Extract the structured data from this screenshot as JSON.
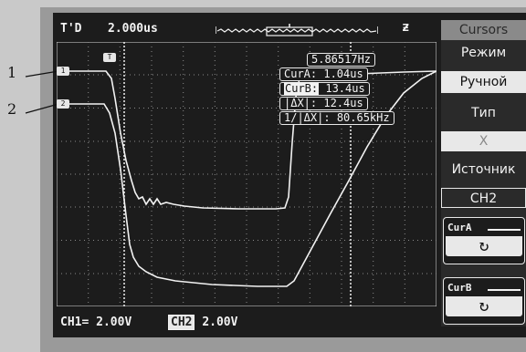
{
  "annotations": {
    "label_1": "1",
    "label_2": "2"
  },
  "topbar": {
    "mode": "T'D",
    "timebase": "2.000us",
    "trigger_icon": "ƶ"
  },
  "channels": {
    "ch1_marker": "1",
    "ch2_marker": "2",
    "trigger_marker": "T"
  },
  "readouts": {
    "frequency": "5.86517Hz",
    "cur_a_label": "CurA:",
    "cur_a_value": "1.04us",
    "cur_b_label": "CurB:",
    "cur_b_value": "13.4us",
    "delta_label": "|ΔX|:",
    "delta_value": "12.4us",
    "inv_delta_label": "1/|ΔX|:",
    "inv_delta_value": "80.65kHz"
  },
  "menu": {
    "title": "Cursors",
    "mode_label": "Режим",
    "mode_value": "Ручной",
    "type_label": "Тип",
    "type_value": "X",
    "source_label": "Источник",
    "source_value": "CH2",
    "cur_a_button": "CurA",
    "cur_b_button": "CurB",
    "knob_icon": "↻"
  },
  "status": {
    "ch1": "CH1",
    "ch1_value": "2.00V",
    "ch2": "CH2",
    "ch2_value": "2.00V"
  },
  "colors": {
    "screen_bg": "#1c1c1c",
    "trace": "#f2f2f2",
    "menu_bg": "#2a2a2a",
    "highlight": "#e8e8e8"
  }
}
